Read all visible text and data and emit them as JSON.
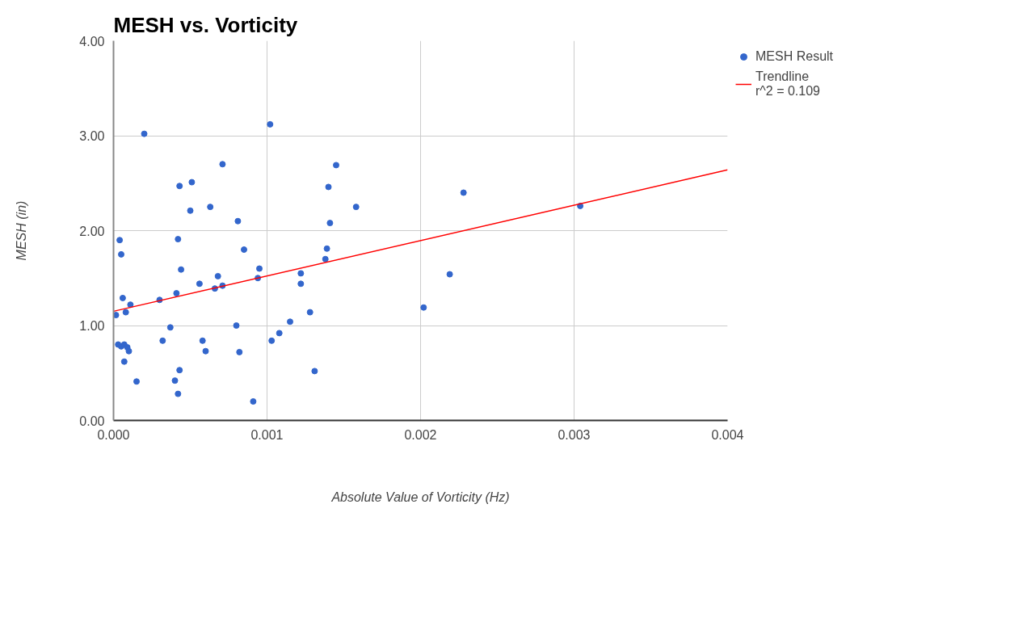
{
  "chart_data": {
    "type": "scatter",
    "title": "MESH vs. Vorticity",
    "xlabel": "Absolute Value of Vorticity (Hz)",
    "ylabel": "MESH (in)",
    "xlim": [
      0,
      0.004
    ],
    "ylim": [
      0,
      4
    ],
    "xticks": [
      {
        "value": 0,
        "label": "0.000"
      },
      {
        "value": 0.001,
        "label": "0.001"
      },
      {
        "value": 0.002,
        "label": "0.002"
      },
      {
        "value": 0.003,
        "label": "0.003"
      },
      {
        "value": 0.004,
        "label": "0.004"
      }
    ],
    "yticks": [
      {
        "value": 0,
        "label": "0.00"
      },
      {
        "value": 1,
        "label": "1.00"
      },
      {
        "value": 2,
        "label": "2.00"
      },
      {
        "value": 3,
        "label": "3.00"
      },
      {
        "value": 4,
        "label": "4.00"
      }
    ],
    "grid": true,
    "legend": "right",
    "annotations": [
      "r^2 = 0.109"
    ],
    "series": [
      {
        "name": "MESH Result",
        "color": "#3366cc",
        "marker": "circle",
        "x": [
          1.6e-05,
          4e-05,
          5e-05,
          6e-05,
          8e-05,
          0.00011,
          3e-05,
          5e-05,
          7e-05,
          9e-05,
          0.0001,
          7e-05,
          0.00015,
          0.0002,
          0.0003,
          0.00032,
          0.00037,
          0.0004,
          0.00042,
          0.00043,
          0.00042,
          0.00041,
          0.00043,
          0.00044,
          0.0005,
          0.00051,
          0.00056,
          0.00058,
          0.0006,
          0.00063,
          0.00066,
          0.00068,
          0.00071,
          0.00071,
          0.0008,
          0.00081,
          0.00082,
          0.00085,
          0.00091,
          0.00094,
          0.00095,
          0.00102,
          0.00103,
          0.00108,
          0.00115,
          0.00122,
          0.00122,
          0.00128,
          0.00131,
          0.00138,
          0.00139,
          0.0014,
          0.00141,
          0.00145,
          0.00158,
          0.00202,
          0.00219,
          0.00228,
          0.00304
        ],
        "values": [
          1.11,
          1.9,
          1.75,
          1.29,
          1.14,
          1.22,
          0.8,
          0.78,
          0.8,
          0.77,
          0.73,
          0.62,
          0.41,
          3.02,
          1.27,
          0.84,
          0.98,
          0.42,
          0.28,
          0.53,
          1.91,
          1.34,
          2.47,
          1.59,
          2.21,
          2.51,
          1.44,
          0.84,
          0.73,
          2.25,
          1.39,
          1.52,
          1.42,
          2.7,
          1.0,
          2.1,
          0.72,
          1.8,
          0.2,
          1.5,
          1.6,
          3.12,
          0.84,
          0.92,
          1.04,
          1.55,
          1.44,
          1.14,
          0.52,
          1.7,
          1.81,
          2.46,
          2.08,
          2.69,
          2.25,
          1.19,
          1.54,
          2.4,
          2.26
        ]
      },
      {
        "name": "Trendline",
        "color": "#ff0000",
        "type": "line",
        "x": [
          0,
          0.004
        ],
        "values": [
          1.15,
          2.64
        ]
      }
    ]
  }
}
